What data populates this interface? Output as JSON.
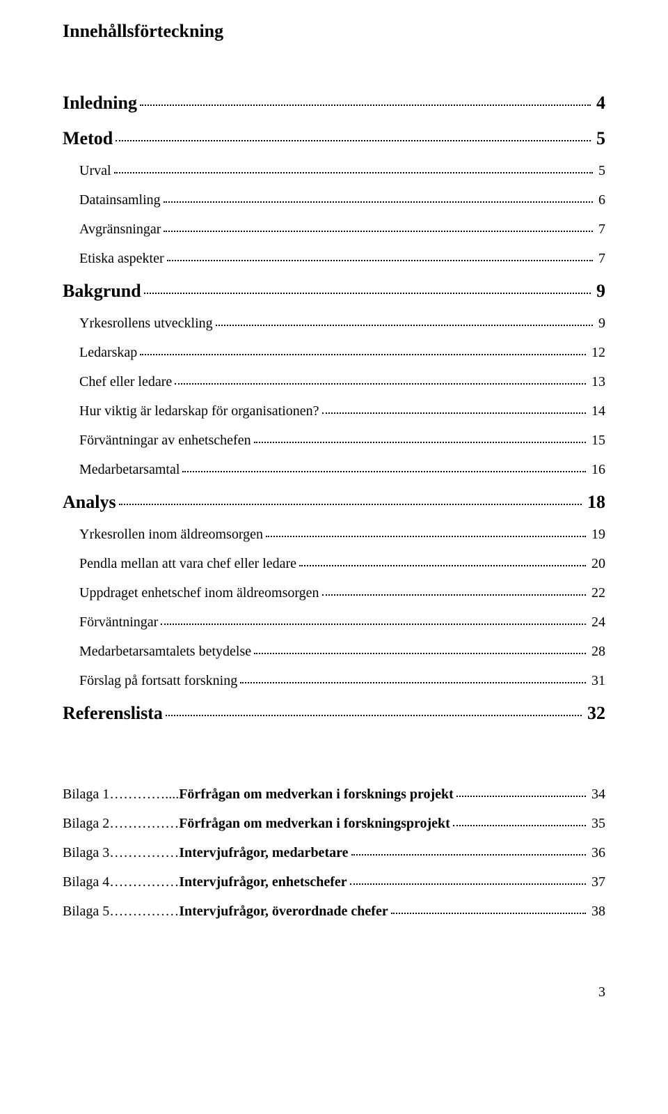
{
  "title": "Innehållsförteckning",
  "footer_page": "3",
  "toc": [
    {
      "label": "Inledning",
      "page": "4",
      "level": "lvl1-bold"
    },
    {
      "label": "Metod",
      "page": "5",
      "level": "lvl1-bold"
    },
    {
      "label": "Urval",
      "page": "5",
      "level": "lvl2"
    },
    {
      "label": "Datainsamling",
      "page": "6",
      "level": "lvl2"
    },
    {
      "label": "Avgränsningar",
      "page": "7",
      "level": "lvl2"
    },
    {
      "label": "Etiska aspekter",
      "page": "7",
      "level": "lvl2"
    },
    {
      "label": "Bakgrund",
      "page": "9",
      "level": "lvl1-bold"
    },
    {
      "label": "Yrkesrollens utveckling",
      "page": "9",
      "level": "lvl2"
    },
    {
      "label": "Ledarskap",
      "page": "12",
      "level": "lvl2"
    },
    {
      "label": "Chef eller ledare",
      "page": "13",
      "level": "lvl2"
    },
    {
      "label": "Hur viktig är ledarskap för organisationen?",
      "page": "14",
      "level": "lvl2"
    },
    {
      "label": "Förväntningar av enhetschefen",
      "page": "15",
      "level": "lvl2"
    },
    {
      "label": "Medarbetarsamtal",
      "page": "16",
      "level": "lvl2"
    },
    {
      "label": "Analys",
      "page": "18",
      "level": "lvl1-bold"
    },
    {
      "label": "Yrkesrollen inom äldreomsorgen",
      "page": "19",
      "level": "lvl2"
    },
    {
      "label": "Pendla mellan att vara chef eller ledare",
      "page": "20",
      "level": "lvl2"
    },
    {
      "label": "Uppdraget enhetschef inom äldreomsorgen",
      "page": "22",
      "level": "lvl2"
    },
    {
      "label": "Förväntningar",
      "page": "24",
      "level": "lvl2"
    },
    {
      "label": "Medarbetarsamtalets betydelse",
      "page": "28",
      "level": "lvl2"
    },
    {
      "label": "Förslag på fortsatt forskning",
      "page": "31",
      "level": "lvl2"
    },
    {
      "label": "Referenslista",
      "page": "32",
      "level": "lvl1-bold"
    }
  ],
  "bilagor": [
    {
      "prefix": "Bilaga 1…………....",
      "label": "Förfrågan om medverkan i forsknings projekt",
      "page": "34"
    },
    {
      "prefix": "Bilaga 2……………",
      "label": "Förfrågan om medverkan i forskningsprojekt",
      "page": "35"
    },
    {
      "prefix": "Bilaga 3……………",
      "label": "Intervjufrågor, medarbetare",
      "page": "36"
    },
    {
      "prefix": "Bilaga 4……………",
      "label": "Intervjufrågor, enhetschefer",
      "page": "37"
    },
    {
      "prefix": "Bilaga 5……………",
      "label": "Intervjufrågor, överordnade chefer",
      "page": "38"
    }
  ]
}
